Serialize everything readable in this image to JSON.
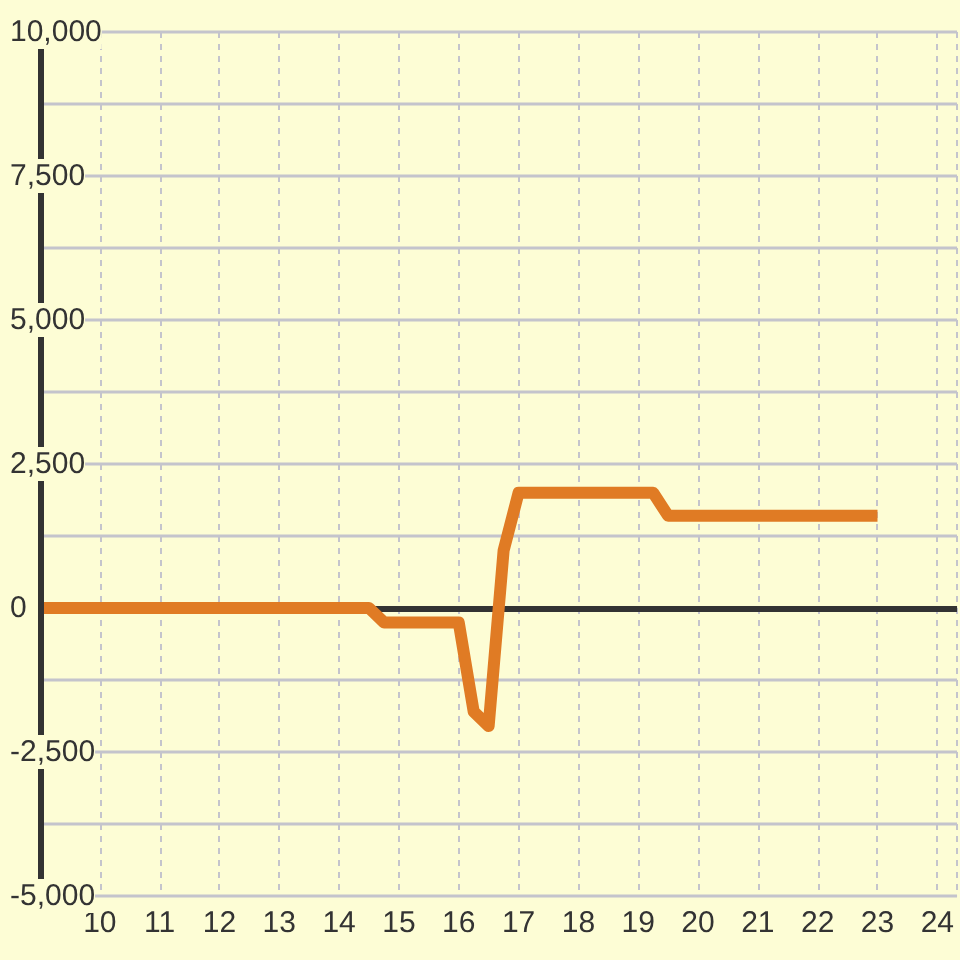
{
  "chart_data": {
    "type": "line",
    "x": [
      9,
      14.5,
      14.75,
      16,
      16.25,
      16.5,
      16.75,
      17,
      19.25,
      19.5,
      23
    ],
    "series": [
      {
        "color": "#e07b24",
        "values": [
          0,
          0,
          -250,
          -250,
          -1800,
          -2050,
          1000,
          2000,
          2000,
          1600,
          1600
        ]
      }
    ],
    "xlim": [
      9,
      24.33
    ],
    "xticks": [
      10,
      11,
      12,
      13,
      14,
      15,
      16,
      17,
      18,
      19,
      20,
      21,
      22,
      23,
      24
    ],
    "ylim": [
      -5000,
      10000
    ],
    "yticks": [
      {
        "value": -5000,
        "label": "-5,000"
      },
      {
        "value": -3750,
        "label": null
      },
      {
        "value": -2500,
        "label": "-2,500"
      },
      {
        "value": -1250,
        "label": null
      },
      0,
      {
        "value": 1250,
        "label": null
      },
      {
        "value": 2500,
        "label": "2,500"
      },
      {
        "value": 3750,
        "label": null
      },
      {
        "value": 5000,
        "label": "5,000"
      },
      {
        "value": 6250,
        "label": null
      },
      {
        "value": 7500,
        "label": "7,500"
      },
      {
        "value": 8750,
        "label": null
      },
      {
        "value": 10000,
        "label": "10,000"
      }
    ],
    "ref_lines": [
      {
        "axis": "y",
        "value": 0,
        "color": "#333333"
      }
    ],
    "grid": true,
    "marker": "none",
    "line_style": "solid"
  }
}
